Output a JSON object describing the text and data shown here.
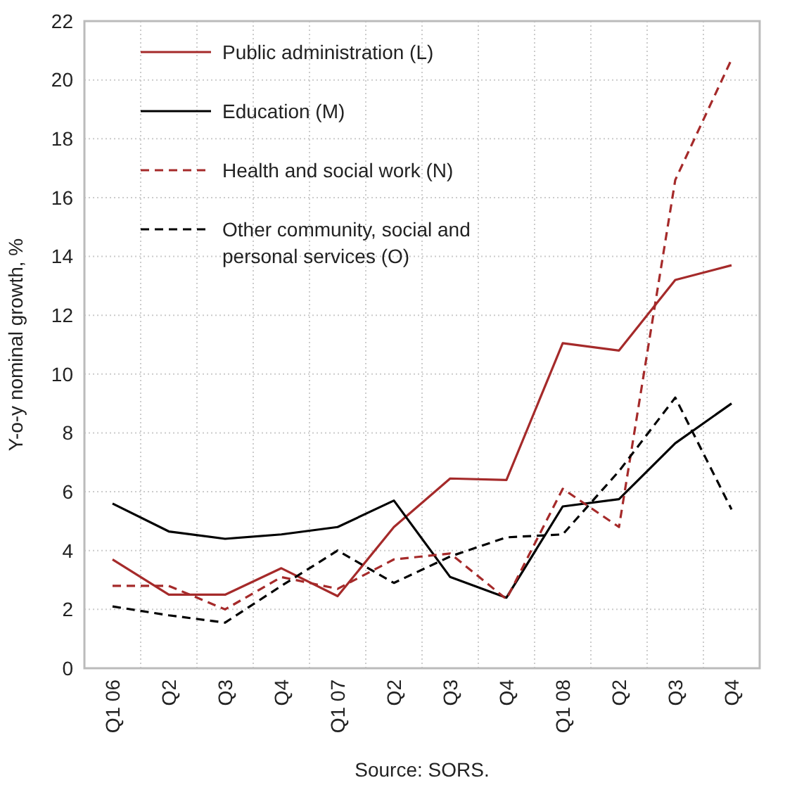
{
  "chart_data": {
    "type": "line",
    "ylabel": "Y-o-y nominal growth, %",
    "annotations": [
      "Source: SORS."
    ],
    "categories": [
      "Q1 06",
      "Q2",
      "Q3",
      "Q4",
      "Q1 07",
      "Q2",
      "Q3",
      "Q4",
      "Q1 08",
      "Q2",
      "Q3",
      "Q4"
    ],
    "series": [
      {
        "name": "Public administration (L)",
        "color": "#a52a2a",
        "line_style": "solid",
        "values": [
          3.7,
          2.5,
          2.5,
          3.4,
          2.45,
          4.8,
          6.45,
          6.4,
          11.05,
          10.8,
          13.2,
          13.7
        ]
      },
      {
        "name": "Education (M)",
        "color": "#000000",
        "line_style": "solid",
        "values": [
          5.6,
          4.65,
          4.4,
          4.55,
          4.8,
          5.7,
          3.1,
          2.4,
          5.5,
          5.75,
          7.65,
          9.0
        ]
      },
      {
        "name": "Health and social work (N)",
        "color": "#a52a2a",
        "line_style": "dashed",
        "values": [
          2.8,
          2.8,
          2.0,
          3.1,
          2.7,
          3.7,
          3.9,
          2.35,
          6.1,
          4.8,
          16.6,
          20.7
        ]
      },
      {
        "name": "Other community, social and personal services (O)",
        "color": "#000000",
        "line_style": "dashed",
        "values": [
          2.1,
          1.8,
          1.55,
          2.8,
          4.0,
          2.9,
          3.8,
          4.45,
          4.55,
          6.7,
          9.2,
          5.4
        ]
      }
    ],
    "ylim": [
      0,
      22
    ],
    "yticks": [
      0,
      2,
      4,
      6,
      8,
      10,
      12,
      14,
      16,
      18,
      20,
      22
    ],
    "grid": true,
    "legend": "top left",
    "marker": "none"
  }
}
